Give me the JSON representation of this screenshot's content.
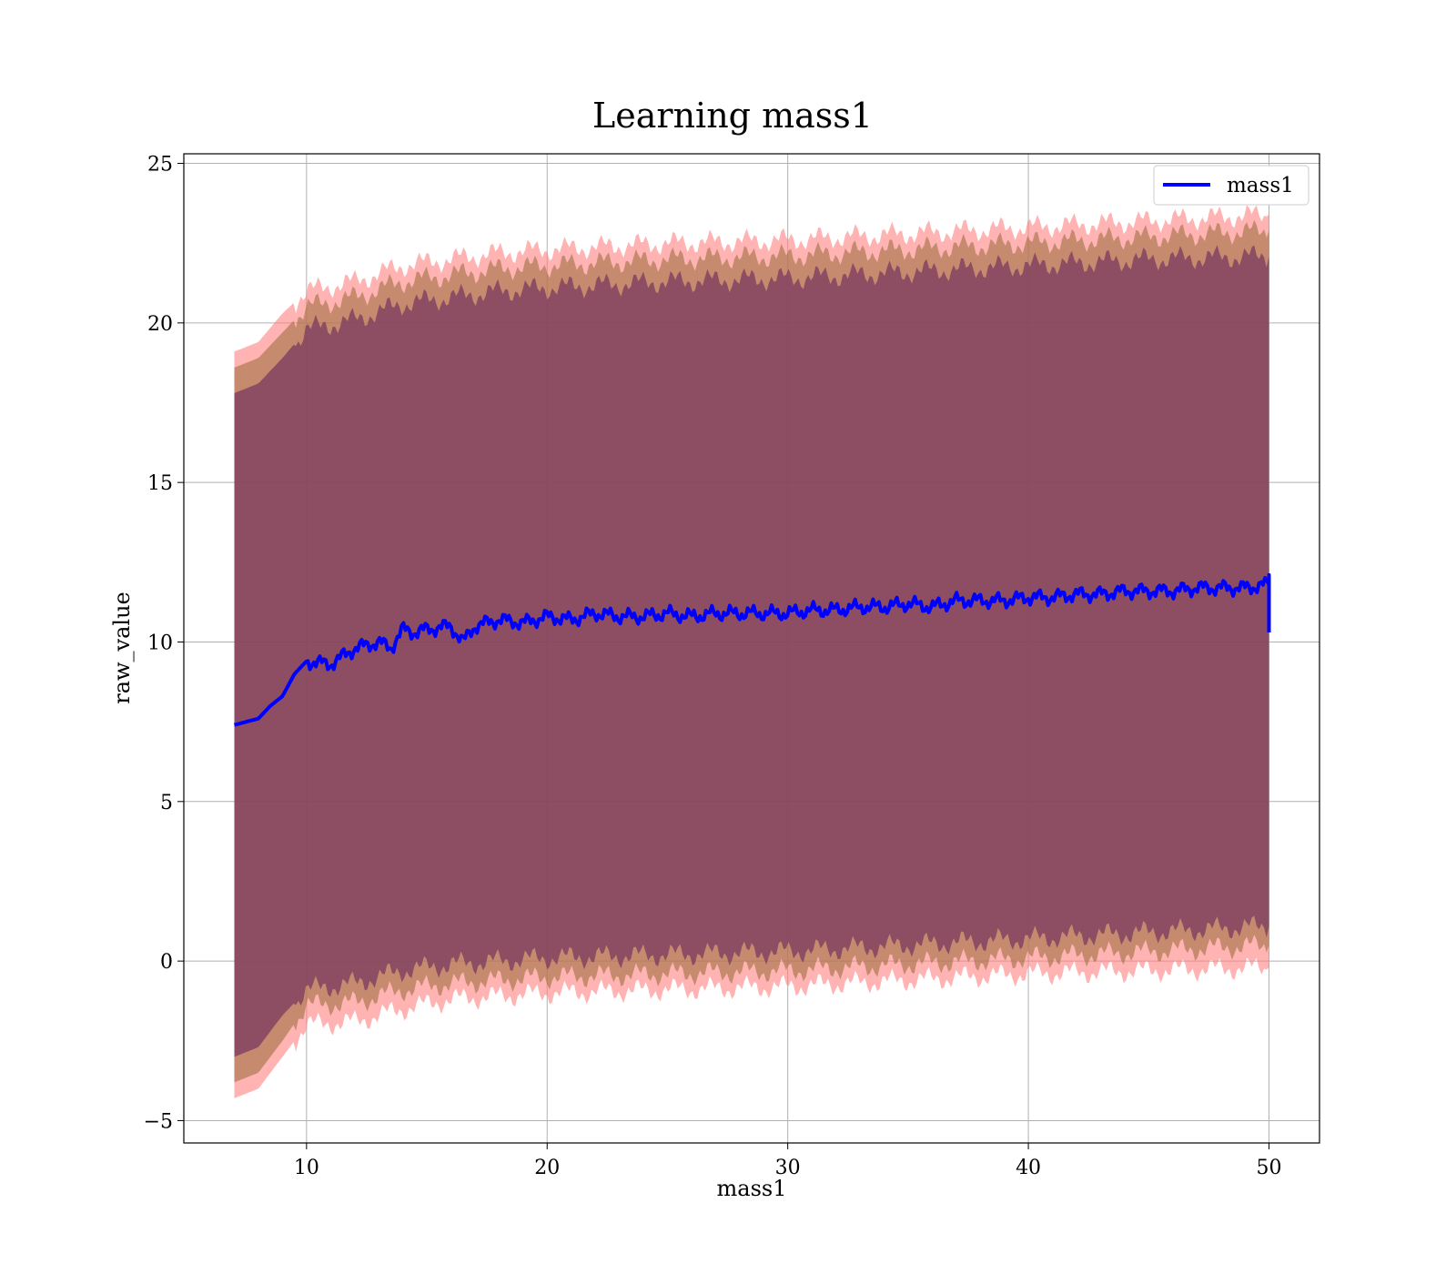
{
  "chart_data": {
    "type": "line",
    "title": "Learning mass1",
    "xlabel": "mass1",
    "ylabel": "raw_value",
    "xlim": [
      4.9,
      52.1
    ],
    "ylim": [
      -5.7,
      25.3
    ],
    "xticks": [
      10,
      20,
      30,
      40,
      50
    ],
    "yticks": [
      -5,
      0,
      5,
      10,
      15,
      20,
      25
    ],
    "xtick_labels": [
      "10",
      "20",
      "30",
      "40",
      "50"
    ],
    "ytick_labels": [
      "−5",
      "0",
      "5",
      "10",
      "15",
      "20",
      "25"
    ],
    "grid": true,
    "legend_position": "top-right",
    "colors": {
      "line": "#0000ff",
      "band_outer": "#ff8080",
      "band_middle": "#a07040",
      "band_inner": "#7a3a60",
      "grid": "#b0b0b0"
    },
    "series": [
      {
        "name": "mass1",
        "x": [
          7.0,
          8.0,
          8.5,
          9.0,
          9.5,
          10.0,
          11.0,
          12.0,
          13.0,
          13.5,
          14.0,
          14.5,
          15.0,
          16.0,
          16.5,
          17.0,
          18.0,
          19.0,
          20.0,
          21.0,
          22.0,
          23.0,
          24.0,
          25.0,
          26.0,
          27.0,
          28.0,
          29.0,
          30.0,
          31.0,
          32.0,
          33.0,
          34.0,
          35.0,
          36.0,
          37.0,
          38.0,
          39.0,
          40.0,
          41.0,
          42.0,
          43.0,
          44.0,
          45.0,
          46.0,
          47.0,
          48.0,
          49.0,
          50.0
        ],
        "values": [
          7.4,
          7.6,
          8.0,
          8.3,
          9.0,
          9.4,
          9.3,
          9.8,
          10.0,
          9.8,
          10.4,
          10.3,
          10.4,
          10.5,
          10.0,
          10.5,
          10.7,
          10.6,
          10.8,
          10.7,
          10.9,
          10.8,
          10.8,
          10.9,
          10.8,
          10.9,
          10.9,
          10.9,
          10.9,
          11.0,
          11.0,
          11.1,
          11.1,
          11.2,
          11.1,
          11.3,
          11.3,
          11.3,
          11.4,
          11.4,
          11.5,
          11.5,
          11.6,
          11.6,
          11.6,
          11.7,
          11.7,
          11.7,
          11.8
        ],
        "end_drop": 10.3
      }
    ],
    "bands": [
      {
        "x": [
          7.0,
          8.0,
          9.0,
          10.0,
          12.0,
          14.0,
          16.0,
          18.0,
          20.0,
          25.0,
          30.0,
          35.0,
          40.0,
          45.0,
          50.0
        ],
        "upper": [
          19.1,
          19.4,
          20.3,
          21.0,
          21.3,
          21.8,
          22.0,
          22.2,
          22.3,
          22.5,
          22.6,
          22.8,
          23.0,
          23.2,
          23.4
        ],
        "lower": [
          -4.3,
          -4.0,
          -3.0,
          -2.0,
          -1.9,
          -1.5,
          -1.2,
          -1.1,
          -1.0,
          -0.9,
          -0.8,
          -0.6,
          -0.4,
          -0.3,
          -0.2
        ]
      },
      {
        "x": [
          7.0,
          8.0,
          9.0,
          10.0,
          12.0,
          14.0,
          16.0,
          18.0,
          20.0,
          25.0,
          30.0,
          35.0,
          40.0,
          45.0,
          50.0
        ],
        "upper": [
          18.6,
          18.9,
          19.7,
          20.5,
          20.8,
          21.3,
          21.5,
          21.7,
          21.8,
          22.0,
          22.1,
          22.3,
          22.5,
          22.7,
          22.9
        ],
        "lower": [
          -3.8,
          -3.5,
          -2.5,
          -1.4,
          -1.3,
          -0.9,
          -0.7,
          -0.6,
          -0.5,
          -0.4,
          -0.3,
          -0.1,
          0.1,
          0.3,
          0.5
        ]
      },
      {
        "x": [
          7.0,
          8.0,
          9.0,
          10.0,
          12.0,
          14.0,
          16.0,
          18.0,
          20.0,
          25.0,
          30.0,
          35.0,
          40.0,
          45.0,
          50.0
        ],
        "upper": [
          17.8,
          18.1,
          18.9,
          19.8,
          20.1,
          20.6,
          20.8,
          21.0,
          21.1,
          21.3,
          21.4,
          21.6,
          21.8,
          22.0,
          22.1
        ],
        "lower": [
          -3.0,
          -2.7,
          -1.7,
          -0.9,
          -0.7,
          -0.3,
          -0.1,
          0.0,
          0.1,
          0.2,
          0.3,
          0.5,
          0.7,
          0.9,
          1.1
        ]
      }
    ]
  }
}
